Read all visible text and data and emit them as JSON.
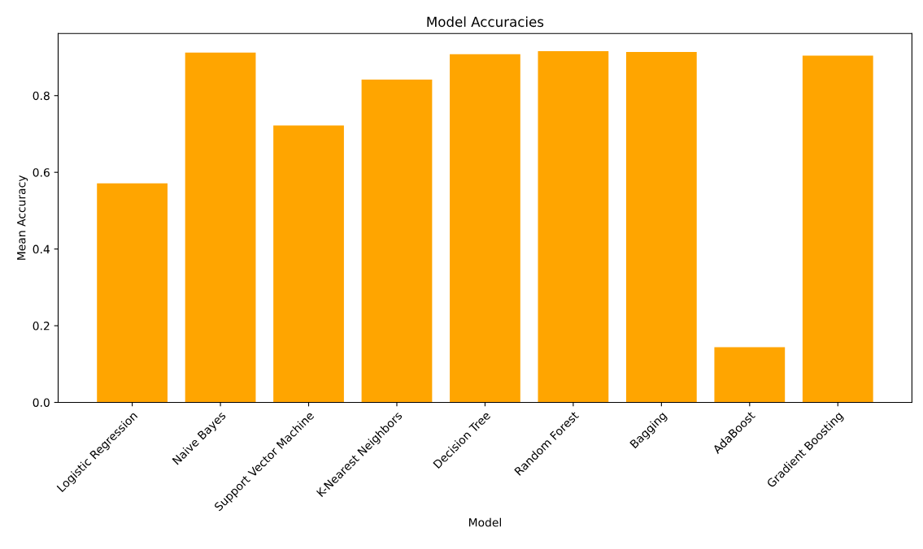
{
  "chart_data": {
    "type": "bar",
    "title": "Model Accuracies",
    "xlabel": "Model",
    "ylabel": "Mean Accuracy",
    "categories": [
      "Logistic Regression",
      "Naive Bayes",
      "Support Vector Machine",
      "K-Nearest Neighbors",
      "Decision Tree",
      "Random Forest",
      "Bagging",
      "AdaBoost",
      "Gradient Boosting"
    ],
    "values": [
      0.571,
      0.912,
      0.722,
      0.842,
      0.908,
      0.916,
      0.914,
      0.144,
      0.904
    ],
    "color": "#ffa500",
    "ylim": [
      0,
      0.962
    ],
    "yticks": [
      {
        "value": 0,
        "label": "0.0"
      },
      {
        "value": 0.2,
        "label": "0.2"
      },
      {
        "value": 0.4,
        "label": "0.4"
      },
      {
        "value": 0.6,
        "label": "0.6"
      },
      {
        "value": 0.8,
        "label": "0.8"
      }
    ],
    "grid": false
  }
}
